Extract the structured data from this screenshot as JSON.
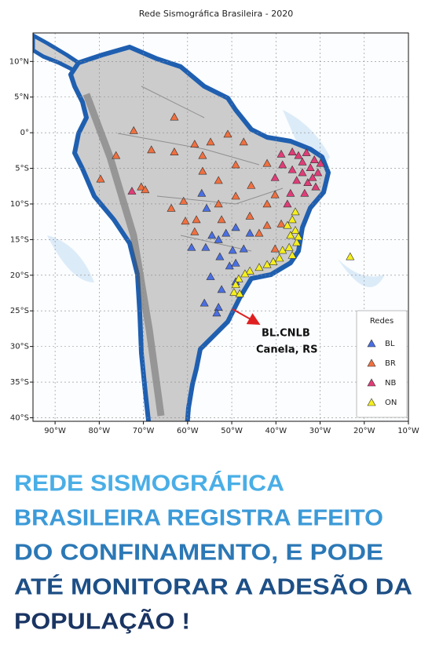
{
  "chart_data": {
    "type": "scatter",
    "title": "Rede Sismográfica Brasileira - 2020",
    "xlim": [
      -95,
      -10
    ],
    "ylim": [
      -40.5,
      14
    ],
    "xticks": [
      {
        "value": -90,
        "label": "90°W"
      },
      {
        "value": -80,
        "label": "80°W"
      },
      {
        "value": -70,
        "label": "70°W"
      },
      {
        "value": -60,
        "label": "60°W"
      },
      {
        "value": -50,
        "label": "50°W"
      },
      {
        "value": -40,
        "label": "40°W"
      },
      {
        "value": -30,
        "label": "30°W"
      },
      {
        "value": -20,
        "label": "20°W"
      },
      {
        "value": -10,
        "label": "10°W"
      }
    ],
    "yticks": [
      {
        "value": 10,
        "label": "10°N"
      },
      {
        "value": 5,
        "label": "5°N"
      },
      {
        "value": 0,
        "label": "0°"
      },
      {
        "value": -5,
        "label": "5°S"
      },
      {
        "value": -10,
        "label": "10°S"
      },
      {
        "value": -15,
        "label": "15°S"
      },
      {
        "value": -20,
        "label": "20°S"
      },
      {
        "value": -25,
        "label": "25°S"
      },
      {
        "value": -30,
        "label": "30°S"
      },
      {
        "value": -35,
        "label": "35°S"
      },
      {
        "value": -40,
        "label": "40°S"
      }
    ],
    "grid": true,
    "marker": "triangle",
    "legend": {
      "title": "Redes",
      "position": "lower right"
    },
    "annotations": [
      "BL.CNLB",
      "Canela, RS"
    ],
    "series": [
      {
        "name": "BL",
        "color": "#4a6fe3",
        "x": [
          -56.8,
          -55.7,
          -59.1,
          -55.9,
          -54.5,
          -53.0,
          -51.3,
          -49.1,
          -52.7,
          -49.8,
          -47.3,
          -45.9,
          -50.5,
          -56.2,
          -53.0,
          -52.3,
          -49.1,
          -54.8,
          -49.1,
          -53.4
        ],
        "y": [
          -8.5,
          -10.6,
          -16.1,
          -16.1,
          -14.4,
          -15.0,
          -14.1,
          -13.3,
          -17.4,
          -16.5,
          -16.3,
          -14.1,
          -18.7,
          -23.9,
          -24.5,
          -22.0,
          -20.9,
          -20.2,
          -18.3,
          -25.3
        ]
      },
      {
        "name": "BR",
        "color": "#f07040",
        "x": [
          -76.2,
          -79.7,
          -70.5,
          -69.6,
          -72.2,
          -68.2,
          -63.0,
          -63.0,
          -58.4,
          -54.8,
          -50.9,
          -47.3,
          -56.6,
          -56.6,
          -49.1,
          -45.6,
          -42.0,
          -53.0,
          -60.9,
          -63.7,
          -53.0,
          -49.1,
          -42.0,
          -40.2,
          -45.9,
          -42.0,
          -43.8,
          -38.8,
          -58.0,
          -52.3,
          -60.5,
          -40.2,
          -58.4
        ],
        "y": [
          -3.2,
          -6.5,
          -7.6,
          -8.0,
          0.3,
          -2.4,
          2.2,
          -2.7,
          -1.6,
          -1.3,
          -0.2,
          -1.3,
          -3.2,
          -5.4,
          -4.5,
          -7.4,
          -4.3,
          -6.7,
          -9.6,
          -10.6,
          -10.0,
          -8.9,
          -10.0,
          -8.7,
          -11.7,
          -13.0,
          -14.1,
          -12.8,
          -12.2,
          -12.2,
          -12.4,
          -16.3,
          -13.9
        ]
      },
      {
        "name": "NB",
        "color": "#e03c78",
        "x": [
          -36.3,
          -34.9,
          -33.1,
          -31.3,
          -29.9,
          -32.2,
          -30.5,
          -34.0,
          -36.3,
          -38.5,
          -35.3,
          -32.8,
          -31.0,
          -33.5,
          -36.7,
          -38.8,
          -40.2,
          -37.4,
          -72.6,
          -34.0,
          -31.7
        ],
        "y": [
          -2.7,
          -3.2,
          -2.8,
          -3.8,
          -4.3,
          -4.9,
          -5.6,
          -5.6,
          -5.2,
          -4.5,
          -6.7,
          -7.0,
          -7.6,
          -8.5,
          -8.5,
          -3.0,
          -6.3,
          -10.0,
          -8.2,
          -4.1,
          -6.3
        ]
      },
      {
        "name": "ON",
        "color": "#f5ef1e",
        "x": [
          -35.6,
          -36.3,
          -37.4,
          -35.6,
          -36.7,
          -35.3,
          -37.0,
          -38.5,
          -36.3,
          -39.2,
          -40.6,
          -42.0,
          -43.8,
          -45.9,
          -47.0,
          -48.4,
          -49.1,
          -49.5,
          -48.2,
          -23.2,
          -34.9
        ],
        "y": [
          -11.1,
          -12.2,
          -13.0,
          -13.7,
          -14.4,
          -15.4,
          -16.1,
          -16.5,
          -17.2,
          -17.6,
          -18.1,
          -18.5,
          -18.9,
          -19.4,
          -19.8,
          -20.5,
          -21.3,
          -22.4,
          -22.6,
          -17.4,
          -14.6
        ]
      }
    ]
  },
  "headline": [
    "REDE SISMOGRÁFICA",
    "BRASILEIRA REGISTRA EFEITO",
    "DO CONFINAMENTO, E PODE",
    "ATÉ MONITORAR A ADESÃO DA",
    "POPULAÇÃO !"
  ]
}
